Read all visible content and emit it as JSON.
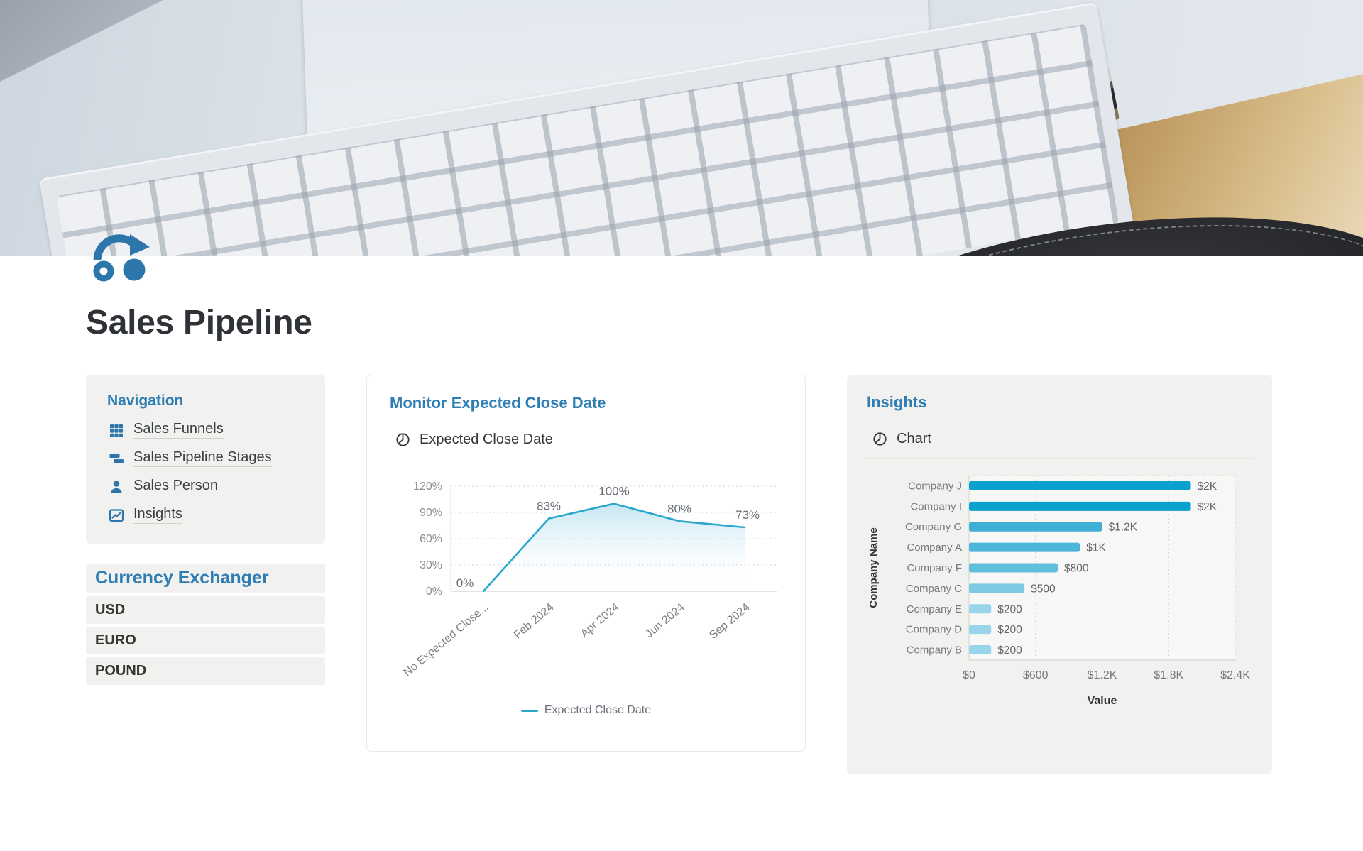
{
  "page": {
    "title": "Sales Pipeline",
    "accent_blue": "#2e7eb3",
    "icon_blue": "#2d76ac"
  },
  "navigation": {
    "heading": "Navigation",
    "items": [
      {
        "label": "Sales Funnels",
        "icon": "grid-icon"
      },
      {
        "label": "Sales Pipeline Stages",
        "icon": "stacked-bars-icon"
      },
      {
        "label": "Sales Person",
        "icon": "person-icon"
      },
      {
        "label": "Insights",
        "icon": "trend-chart-icon"
      }
    ]
  },
  "currency": {
    "heading": "Currency Exchanger",
    "items": [
      "USD",
      "EURO",
      "POUND"
    ]
  },
  "monitor_card": {
    "title": "Monitor Expected Close Date",
    "toggle_label": "Expected Close Date",
    "toggle_icon": "pie-chart-icon"
  },
  "insights_card": {
    "title": "Insights",
    "toggle_label": "Chart",
    "toggle_icon": "pie-chart-icon"
  },
  "chart_data": [
    {
      "type": "line",
      "title": "Monitor Expected Close Date",
      "categories": [
        "No Expected Close...",
        "Feb 2024",
        "Apr 2024",
        "Jun 2024",
        "Sep 2024"
      ],
      "series": [
        {
          "name": "Expected Close Date",
          "values": [
            0,
            83,
            100,
            80,
            73
          ]
        }
      ],
      "point_labels": [
        "0%",
        "83%",
        "100%",
        "80%",
        "73%"
      ],
      "yticks": [
        "0%",
        "30%",
        "60%",
        "90%",
        "120%"
      ],
      "ytick_values": [
        0,
        30,
        60,
        90,
        120
      ],
      "ylim": [
        0,
        120
      ],
      "grid": "dotted-horizontal",
      "legend_position": "bottom",
      "line_color": "#2aa7cd",
      "area_fill": true
    },
    {
      "type": "bar",
      "orientation": "horizontal",
      "categories": [
        "Company J",
        "Company I",
        "Company G",
        "Company A",
        "Company F",
        "Company C",
        "Company E",
        "Company D",
        "Company B"
      ],
      "values": [
        2000,
        2000,
        1200,
        1000,
        800,
        500,
        200,
        200,
        200
      ],
      "value_labels": [
        "$2K",
        "$2K",
        "$1.2K",
        "$1K",
        "$800",
        "$500",
        "$200",
        "$200",
        "$200"
      ],
      "bar_colors": [
        "#0aa1ce",
        "#0aa1ce",
        "#3eb0d6",
        "#4bb6d9",
        "#60bfdd",
        "#7ecae3",
        "#98d4ea",
        "#98d4ea",
        "#98d4ea"
      ],
      "xticks": [
        "$0",
        "$600",
        "$1.2K",
        "$1.8K",
        "$2.4K"
      ],
      "xtick_values": [
        0,
        600,
        1200,
        1800,
        2400
      ],
      "xlim": [
        0,
        2400
      ],
      "xlabel": "Value",
      "ylabel": "Company Name",
      "grid": "dotted-vertical"
    }
  ]
}
